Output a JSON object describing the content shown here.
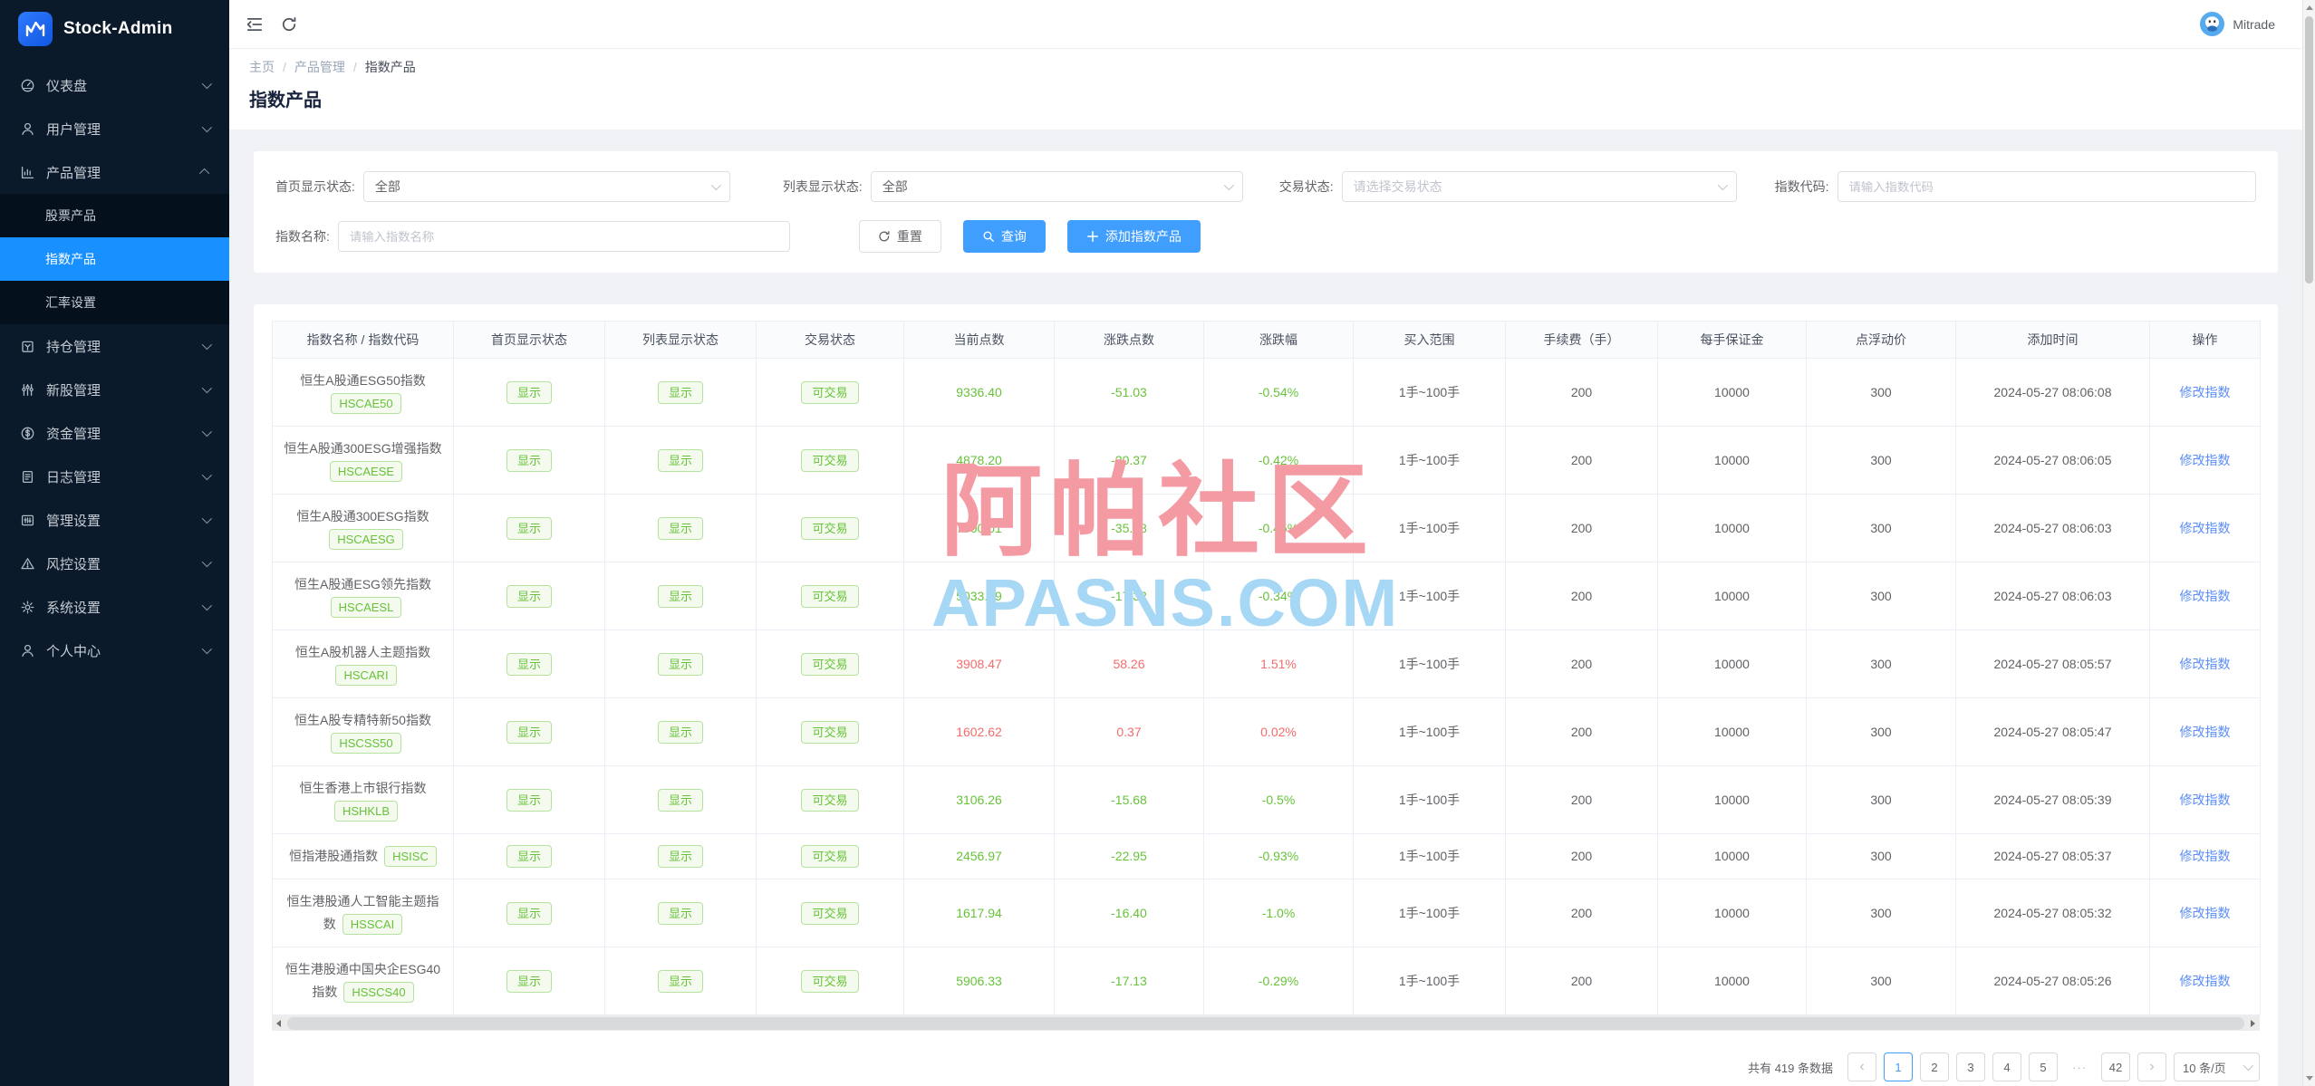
{
  "app": {
    "name": "Stock-Admin",
    "user": "Mitrade"
  },
  "breadcrumb": [
    "主页",
    "产品管理",
    "指数产品"
  ],
  "breadcrumb_sep": "/",
  "page": {
    "title": "指数产品"
  },
  "sidebar": {
    "items": [
      {
        "key": "dashboard",
        "label": "仪表盘",
        "icon": "gauge-icon",
        "expanded": false
      },
      {
        "key": "users",
        "label": "用户管理",
        "icon": "user-icon",
        "expanded": false
      },
      {
        "key": "products",
        "label": "产品管理",
        "icon": "chart-icon",
        "expanded": true,
        "children": [
          {
            "key": "stock-products",
            "label": "股票产品",
            "active": false
          },
          {
            "key": "index-products",
            "label": "指数产品",
            "active": true
          },
          {
            "key": "exchange-rate",
            "label": "汇率设置",
            "active": false
          }
        ]
      },
      {
        "key": "positions",
        "label": "持仓管理",
        "icon": "position-icon",
        "expanded": false
      },
      {
        "key": "ipo",
        "label": "新股管理",
        "icon": "sliders-icon",
        "expanded": false
      },
      {
        "key": "funds",
        "label": "资金管理",
        "icon": "dollar-icon",
        "expanded": false
      },
      {
        "key": "logs",
        "label": "日志管理",
        "icon": "document-icon",
        "expanded": false
      },
      {
        "key": "admin-settings",
        "label": "管理设置",
        "icon": "card-icon",
        "expanded": false
      },
      {
        "key": "risk-settings",
        "label": "风控设置",
        "icon": "warning-icon",
        "expanded": false
      },
      {
        "key": "system-settings",
        "label": "系统设置",
        "icon": "gear-icon",
        "expanded": false
      },
      {
        "key": "profile",
        "label": "个人中心",
        "icon": "person-icon",
        "expanded": false
      }
    ]
  },
  "filters": {
    "home_status": {
      "label": "首页显示状态:",
      "value": "全部"
    },
    "list_status": {
      "label": "列表显示状态:",
      "value": "全部"
    },
    "trade_status": {
      "label": "交易状态:",
      "placeholder": "请选择交易状态"
    },
    "index_code": {
      "label": "指数代码:",
      "placeholder": "请输入指数代码"
    },
    "index_name": {
      "label": "指数名称:",
      "placeholder": "请输入指数名称"
    }
  },
  "actions": {
    "reset": "重置",
    "search": "查询",
    "add": "添加指数产品"
  },
  "table": {
    "columns": [
      "指数名称 / 指数代码",
      "首页显示状态",
      "列表显示状态",
      "交易状态",
      "当前点数",
      "涨跌点数",
      "涨跌幅",
      "买入范围",
      "手续费（手）",
      "每手保证金",
      "点浮动价",
      "添加时间",
      "操作"
    ],
    "rows": [
      {
        "name": "恒生A股通ESG50指数",
        "code": "HSCAE50",
        "home_status": "显示",
        "list_status": "显示",
        "trade_status": "可交易",
        "points": "9336.40",
        "change": "-51.03",
        "change_pct": "-0.54%",
        "trend": "down",
        "buy_range": "1手~100手",
        "fee": "200",
        "margin": "10000",
        "float_price": "300",
        "added_time": "2024-05-27 08:06:08",
        "action": "修改指数"
      },
      {
        "name": "恒生A股通300ESG增强指数",
        "code": "HSCAESE",
        "home_status": "显示",
        "list_status": "显示",
        "trade_status": "可交易",
        "points": "4878.20",
        "change": "-20.37",
        "change_pct": "-0.42%",
        "trend": "down",
        "buy_range": "1手~100手",
        "fee": "200",
        "margin": "10000",
        "float_price": "300",
        "added_time": "2024-05-27 08:06:05",
        "action": "修改指数"
      },
      {
        "name": "恒生A股通300ESG指数",
        "code": "HSCAESG",
        "home_status": "显示",
        "list_status": "显示",
        "trade_status": "可交易",
        "points": "7900.01",
        "change": "-35.78",
        "change_pct": "-0.45%",
        "trend": "down",
        "buy_range": "1手~100手",
        "fee": "200",
        "margin": "10000",
        "float_price": "300",
        "added_time": "2024-05-27 08:06:03",
        "action": "修改指数"
      },
      {
        "name": "恒生A股通ESG领先指数",
        "code": "HSCAESL",
        "home_status": "显示",
        "list_status": "显示",
        "trade_status": "可交易",
        "points": "5033.99",
        "change": "-17.32",
        "change_pct": "-0.34%",
        "trend": "down",
        "buy_range": "1手~100手",
        "fee": "200",
        "margin": "10000",
        "float_price": "300",
        "added_time": "2024-05-27 08:06:03",
        "action": "修改指数"
      },
      {
        "name": "恒生A股机器人主题指数",
        "code": "HSCARI",
        "home_status": "显示",
        "list_status": "显示",
        "trade_status": "可交易",
        "points": "3908.47",
        "change": "58.26",
        "change_pct": "1.51%",
        "trend": "up",
        "buy_range": "1手~100手",
        "fee": "200",
        "margin": "10000",
        "float_price": "300",
        "added_time": "2024-05-27 08:05:57",
        "action": "修改指数"
      },
      {
        "name": "恒生A股专精特新50指数",
        "code": "HSCSS50",
        "home_status": "显示",
        "list_status": "显示",
        "trade_status": "可交易",
        "points": "1602.62",
        "change": "0.37",
        "change_pct": "0.02%",
        "trend": "up",
        "buy_range": "1手~100手",
        "fee": "200",
        "margin": "10000",
        "float_price": "300",
        "added_time": "2024-05-27 08:05:47",
        "action": "修改指数"
      },
      {
        "name": "恒生香港上市银行指数",
        "code": "HSHKLB",
        "home_status": "显示",
        "list_status": "显示",
        "trade_status": "可交易",
        "points": "3106.26",
        "change": "-15.68",
        "change_pct": "-0.5%",
        "trend": "down",
        "buy_range": "1手~100手",
        "fee": "200",
        "margin": "10000",
        "float_price": "300",
        "added_time": "2024-05-27 08:05:39",
        "action": "修改指数"
      },
      {
        "name": "恒指港股通指数",
        "code": "HSISC",
        "home_status": "显示",
        "list_status": "显示",
        "trade_status": "可交易",
        "points": "2456.97",
        "change": "-22.95",
        "change_pct": "-0.93%",
        "trend": "down",
        "buy_range": "1手~100手",
        "fee": "200",
        "margin": "10000",
        "float_price": "300",
        "added_time": "2024-05-27 08:05:37",
        "action": "修改指数"
      },
      {
        "name": "恒生港股通人工智能主题指数",
        "code": "HSSCAI",
        "home_status": "显示",
        "list_status": "显示",
        "trade_status": "可交易",
        "points": "1617.94",
        "change": "-16.40",
        "change_pct": "-1.0%",
        "trend": "down",
        "buy_range": "1手~100手",
        "fee": "200",
        "margin": "10000",
        "float_price": "300",
        "added_time": "2024-05-27 08:05:32",
        "action": "修改指数"
      },
      {
        "name": "恒生港股通中国央企ESG40指数",
        "code": "HSSCS40",
        "home_status": "显示",
        "list_status": "显示",
        "trade_status": "可交易",
        "points": "5906.33",
        "change": "-17.13",
        "change_pct": "-0.29%",
        "trend": "down",
        "buy_range": "1手~100手",
        "fee": "200",
        "margin": "10000",
        "float_price": "300",
        "added_time": "2024-05-27 08:05:26",
        "action": "修改指数"
      }
    ]
  },
  "watermark": {
    "line1": "阿帕社区",
    "line2": "APASNS.COM"
  },
  "pagination": {
    "total": "共有 419 条数据",
    "prev": "‹",
    "pages": [
      "1",
      "2",
      "3",
      "4",
      "5",
      "···",
      "42"
    ],
    "active": "1",
    "next": "›",
    "page_size": "10 条/页"
  },
  "colors": {
    "accent": "#409eff",
    "sidebar_active": "#1890ff",
    "up": "#f56c6c",
    "down": "#67c23a",
    "watermark_pink": "#f49aa3",
    "watermark_blue": "#a6d7f5"
  }
}
